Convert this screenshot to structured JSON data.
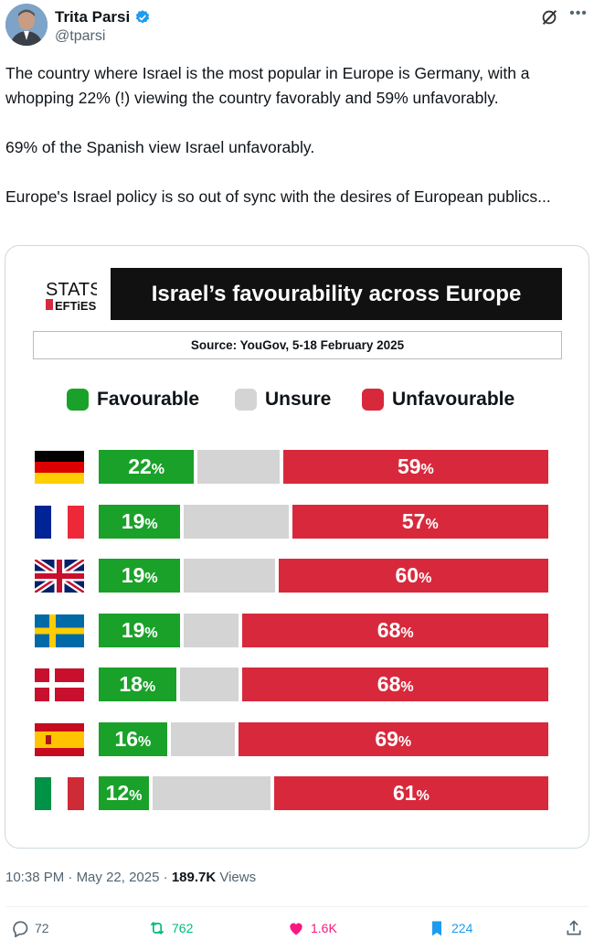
{
  "author": {
    "name": "Trita Parsi",
    "handle": "@tparsi"
  },
  "tweet": {
    "text": "The country where Israel is the most popular in Europe is Germany, with a whopping 22% (!) viewing the country favorably and 59% unfavorably.\n\n69% of the Spanish view Israel unfavorably.\n\nEurope's Israel policy is so out of sync with the desires of European publics..."
  },
  "image": {
    "logo_top": "STATS",
    "logo_bottom": "EFTiES",
    "title": "Israel’s favourability across Europe",
    "source": "Source: YouGov, 5-18 February 2025",
    "legend": [
      {
        "label": "Favourable",
        "color": "#1aa129"
      },
      {
        "label": "Unsure",
        "color": "#d4d4d4"
      },
      {
        "label": "Unfavourable",
        "color": "#d8293c"
      }
    ]
  },
  "chart_data": {
    "type": "bar",
    "stacked": true,
    "title": "Israel’s favourability across Europe",
    "subtitle": "Source: YouGov, 5-18 February 2025",
    "categories": [
      "Germany",
      "France",
      "United Kingdom",
      "Sweden",
      "Denmark",
      "Spain",
      "Italy"
    ],
    "flags": [
      "germany-flag",
      "france-flag",
      "uk-flag",
      "sweden-flag",
      "denmark-flag",
      "spain-flag",
      "italy-flag"
    ],
    "series": [
      {
        "name": "Favourable",
        "values": [
          22,
          19,
          19,
          19,
          18,
          16,
          12
        ]
      },
      {
        "name": "Unsure",
        "values": [
          19,
          24,
          21,
          13,
          14,
          15,
          27
        ]
      },
      {
        "name": "Unfavourable",
        "values": [
          59,
          57,
          60,
          68,
          68,
          69,
          61
        ]
      }
    ],
    "unit": "%"
  },
  "footer": {
    "time": "10:38 PM",
    "date": "May 22, 2025",
    "views_count": "189.7K",
    "views_label": "Views"
  },
  "actions": {
    "replies": "72",
    "reposts": "762",
    "likes": "1.6K",
    "bookmarks": "224"
  },
  "colors": {
    "favourable": "#1aa129",
    "unsure": "#d4d4d4",
    "unfavourable": "#d8293c",
    "verified": "#1d9bf0",
    "repost": "#00ba7c",
    "like": "#f91880",
    "bookmark": "#1d9bf0"
  }
}
